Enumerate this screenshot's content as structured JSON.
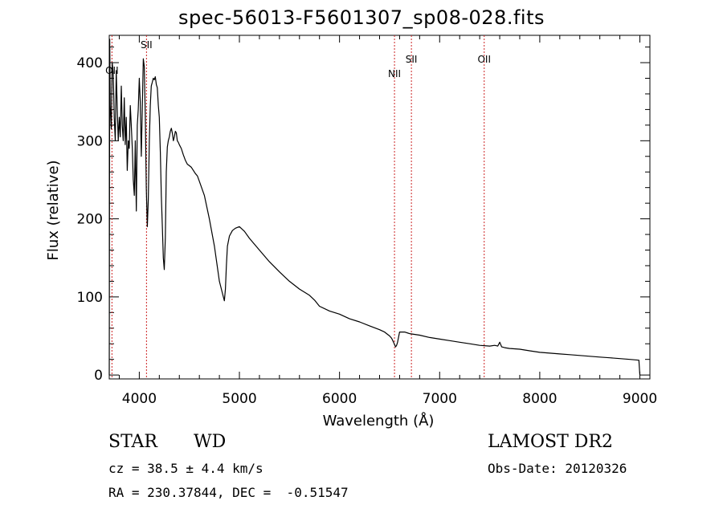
{
  "chart_data": {
    "type": "line",
    "title": "spec-56013-F5601307_sp08-028.fits",
    "xlabel": "Wavelength (Å)",
    "ylabel": "Flux (relative)",
    "xlim": [
      3700,
      9100
    ],
    "ylim": [
      -5,
      435
    ],
    "xticks": [
      4000,
      5000,
      6000,
      7000,
      8000,
      9000
    ],
    "yticks": [
      0,
      100,
      200,
      300,
      400
    ],
    "grid": false,
    "series": [
      {
        "color": "#000000",
        "x": [
          3700,
          3705,
          3710,
          3720,
          3730,
          3740,
          3750,
          3760,
          3770,
          3780,
          3790,
          3800,
          3810,
          3820,
          3830,
          3840,
          3850,
          3860,
          3870,
          3880,
          3890,
          3900,
          3910,
          3920,
          3930,
          3940,
          3950,
          3960,
          3970,
          3980,
          3990,
          4000,
          4010,
          4020,
          4030,
          4040,
          4050,
          4060,
          4070,
          4080,
          4090,
          4100,
          4110,
          4120,
          4130,
          4140,
          4150,
          4160,
          4170,
          4180,
          4190,
          4200,
          4210,
          4220,
          4230,
          4240,
          4250,
          4260,
          4270,
          4280,
          4290,
          4300,
          4310,
          4320,
          4330,
          4340,
          4350,
          4360,
          4370,
          4380,
          4390,
          4400,
          4420,
          4440,
          4460,
          4480,
          4500,
          4520,
          4540,
          4560,
          4580,
          4600,
          4650,
          4700,
          4750,
          4800,
          4830,
          4850,
          4860,
          4865,
          4870,
          4880,
          4900,
          4930,
          4960,
          5000,
          5050,
          5100,
          5200,
          5300,
          5400,
          5500,
          5600,
          5700,
          5750,
          5800,
          5900,
          6000,
          6100,
          6200,
          6300,
          6400,
          6450,
          6500,
          6520,
          6540,
          6560,
          6570,
          6580,
          6600,
          6650,
          6700,
          6800,
          6900,
          7000,
          7100,
          7200,
          7300,
          7400,
          7500,
          7550,
          7580,
          7600,
          7620,
          7650,
          7700,
          7800,
          7900,
          8000,
          8100,
          8200,
          8300,
          8400,
          8500,
          8600,
          8700,
          8800,
          8900,
          8990,
          9000
        ],
        "y": [
          0,
          430,
          345,
          315,
          400,
          385,
          330,
          300,
          390,
          340,
          300,
          330,
          305,
          370,
          320,
          300,
          355,
          295,
          330,
          262,
          300,
          290,
          345,
          320,
          290,
          250,
          230,
          300,
          210,
          320,
          340,
          380,
          350,
          280,
          340,
          405,
          395,
          330,
          240,
          190,
          225,
          300,
          345,
          370,
          375,
          380,
          378,
          382,
          372,
          368,
          345,
          330,
          285,
          230,
          190,
          150,
          135,
          175,
          260,
          292,
          300,
          305,
          312,
          316,
          310,
          300,
          305,
          312,
          310,
          300,
          298,
          295,
          290,
          282,
          275,
          270,
          268,
          266,
          262,
          258,
          255,
          248,
          230,
          200,
          165,
          120,
          105,
          95,
          110,
          125,
          140,
          165,
          178,
          185,
          188,
          190,
          184,
          175,
          160,
          145,
          132,
          120,
          110,
          102,
          96,
          88,
          82,
          78,
          72,
          68,
          63,
          58,
          55,
          50,
          47,
          42,
          36,
          38,
          42,
          55,
          55,
          53,
          51,
          48,
          46,
          44,
          42,
          40,
          38,
          37,
          38,
          37,
          42,
          36,
          35,
          34,
          33,
          31,
          29,
          28,
          27,
          26,
          25,
          24,
          23,
          22,
          21,
          20,
          19,
          0
        ]
      }
    ],
    "annotations": [
      {
        "label": "OII",
        "x": 3727
      },
      {
        "label": "SII",
        "x": 4072
      },
      {
        "label": "NII",
        "x": 6549
      },
      {
        "label": "SII",
        "x": 6718
      },
      {
        "label": "OII",
        "x": 7445
      }
    ],
    "annotation_color": "#cc2222"
  },
  "footer": {
    "object_class": "STAR",
    "subclass": "WD",
    "survey": "LAMOST DR2",
    "cz_text": "cz = 38.5 ± 4.4 km/s",
    "obs_date": "Obs-Date: 20120326",
    "coords": "RA = 230.37844, DEC =  -0.51547"
  }
}
